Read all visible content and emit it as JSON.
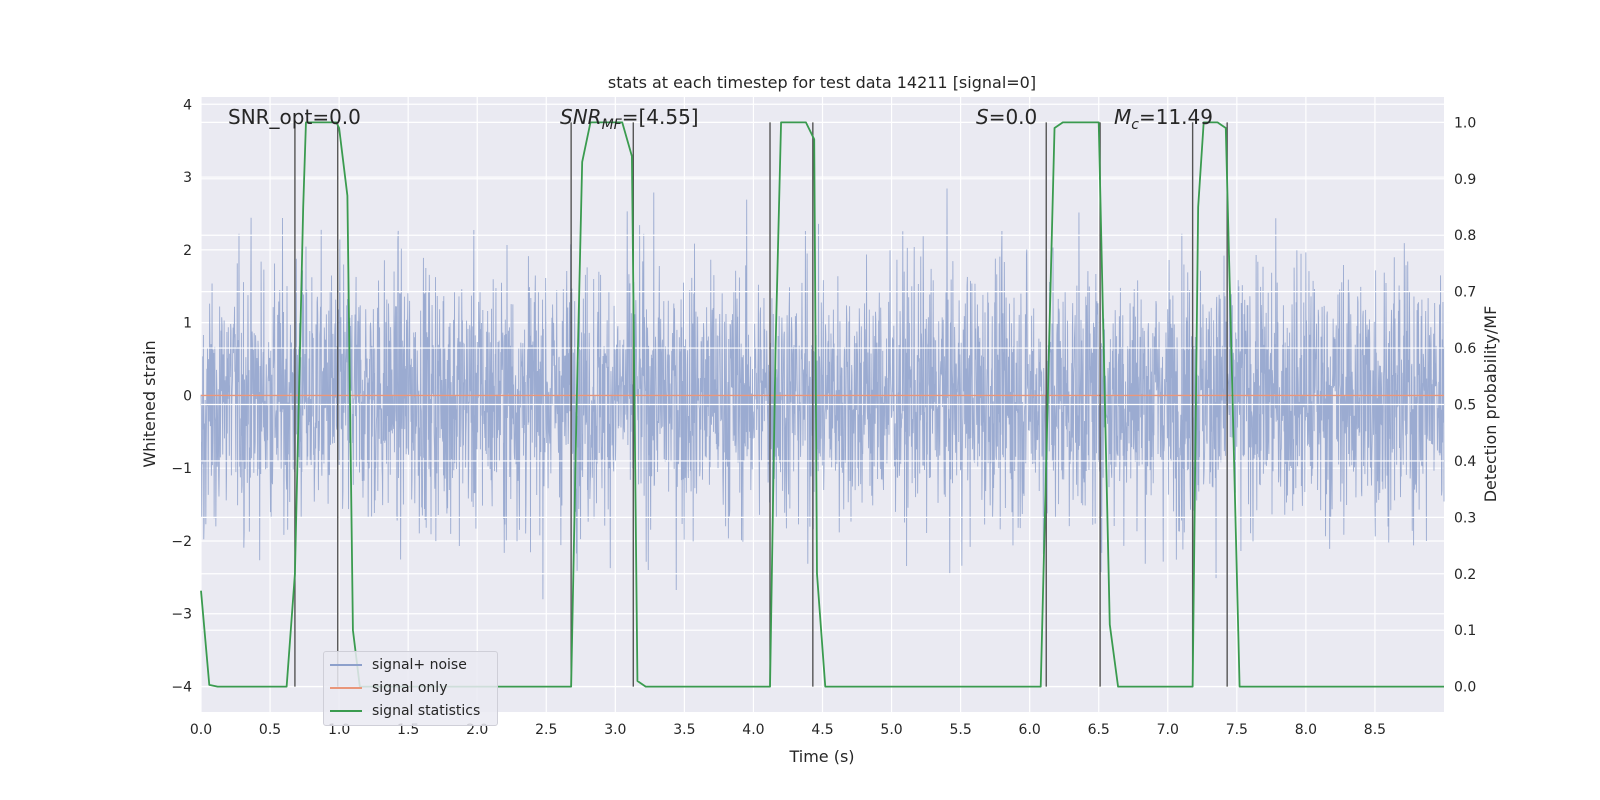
{
  "chart_data": {
    "type": "line",
    "title": "stats at each timestep for test data 14211 [signal=0]",
    "xlabel": "Time (s)",
    "ylabel_left": "Whitened strain",
    "ylabel_right": "Detection probability/MF",
    "xlim": [
      0.0,
      9.0
    ],
    "ylim_left": [
      -4.35,
      4.1
    ],
    "ylim_right": [
      -0.045,
      1.045
    ],
    "x_ticks": [
      "0.0",
      "0.5",
      "1.0",
      "1.5",
      "2.0",
      "2.5",
      "3.0",
      "3.5",
      "4.0",
      "4.5",
      "5.0",
      "5.5",
      "6.0",
      "6.5",
      "7.0",
      "7.5",
      "8.0",
      "8.5"
    ],
    "y_ticks_left": [
      "−4",
      "−3",
      "−2",
      "−1",
      "0",
      "1",
      "2",
      "3",
      "4"
    ],
    "y_ticks_right": [
      "0.0",
      "0.1",
      "0.2",
      "0.3",
      "0.4",
      "0.5",
      "0.6",
      "0.7",
      "0.8",
      "0.9",
      "1.0"
    ],
    "grid": true,
    "annotations": {
      "snr_opt": "SNR_opt=0.0",
      "snr_mf_main": "SNR",
      "snr_mf_sub": "MF",
      "snr_mf_value": "=[4.55]",
      "s_main": "S",
      "s_value": "=0.0",
      "mc_main": "M",
      "mc_sub": "c",
      "mc_value": "=11.49"
    },
    "legend": {
      "placement": "lower-left",
      "entries": [
        {
          "label": "signal+ noise",
          "color": "#8da0cb"
        },
        {
          "label": "signal only",
          "color": "#e9967a"
        },
        {
          "label": "signal statistics",
          "color": "#3a9b4f"
        }
      ]
    },
    "series": [
      {
        "name": "signal+ noise",
        "axis": "left",
        "color": "#8da0cb",
        "amplitude_range": [
          -4.0,
          3.6
        ],
        "description_points_x": [
          0.0,
          9.0
        ]
      },
      {
        "name": "signal only",
        "axis": "left",
        "color": "#e9967a",
        "x": [
          0.0,
          9.0
        ],
        "y": [
          0.0,
          0.0
        ]
      },
      {
        "name": "signal statistics",
        "axis": "right",
        "color": "#3a9b4f",
        "x": [
          0.0,
          0.06,
          0.12,
          0.62,
          0.68,
          0.74,
          0.76,
          0.98,
          1.0,
          1.06,
          1.1,
          1.15,
          2.68,
          2.72,
          2.76,
          2.82,
          3.05,
          3.12,
          3.16,
          3.22,
          4.12,
          4.16,
          4.2,
          4.38,
          4.44,
          4.46,
          4.52,
          6.08,
          6.14,
          6.18,
          6.24,
          6.5,
          6.58,
          6.64,
          7.18,
          7.22,
          7.26,
          7.36,
          7.42,
          7.46,
          7.52,
          9.0
        ],
        "y": [
          0.17,
          0.003,
          0.0,
          0.0,
          0.2,
          0.85,
          1.0,
          1.0,
          0.99,
          0.87,
          0.1,
          0.0,
          0.0,
          0.5,
          0.93,
          1.0,
          1.0,
          0.94,
          0.01,
          0.0,
          0.0,
          0.6,
          1.0,
          1.0,
          0.97,
          0.2,
          0.0,
          0.0,
          0.6,
          0.99,
          1.0,
          1.0,
          0.11,
          0.0,
          0.0,
          0.85,
          1.0,
          1.0,
          0.99,
          0.6,
          0.0,
          0.0
        ]
      }
    ],
    "vertical_lines_x": [
      0.68,
      0.99,
      2.68,
      3.13,
      4.12,
      4.43,
      6.12,
      6.51,
      7.18,
      7.43
    ]
  }
}
